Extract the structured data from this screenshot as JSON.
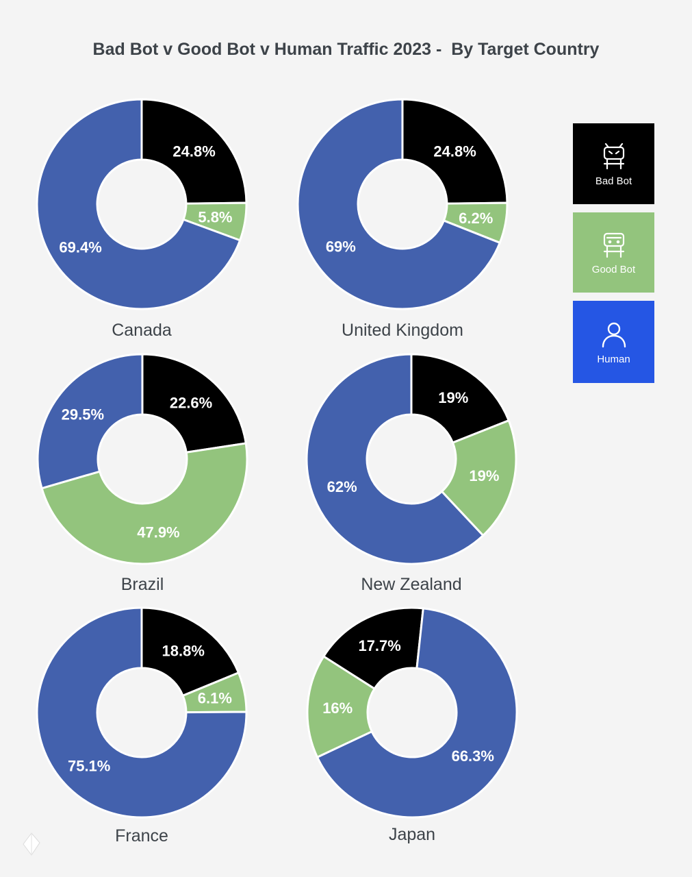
{
  "chart_data": {
    "type": "pie",
    "title": "Bad Bot v Good Bot v Human Traffic 2023 -  By Target Country",
    "series_names": [
      "Bad Bot",
      "Good Bot",
      "Human"
    ],
    "colors": {
      "bad_bot": "#000000",
      "good_bot": "#93c47d",
      "human": "#4361ad",
      "human_legend": "#2556e4"
    },
    "countries": [
      {
        "name": "Canada",
        "slices": [
          {
            "series": "Bad Bot",
            "value": 24.8,
            "label": "24.8%"
          },
          {
            "series": "Good Bot",
            "value": 5.8,
            "label": "5.8%"
          },
          {
            "series": "Human",
            "value": 69.4,
            "label": "69.4%"
          }
        ]
      },
      {
        "name": "United Kingdom",
        "slices": [
          {
            "series": "Bad Bot",
            "value": 24.8,
            "label": "24.8%"
          },
          {
            "series": "Good Bot",
            "value": 6.2,
            "label": "6.2%"
          },
          {
            "series": "Human",
            "value": 69,
            "label": "69%"
          }
        ]
      },
      {
        "name": "Brazil",
        "slices": [
          {
            "series": "Bad Bot",
            "value": 22.6,
            "label": "22.6%"
          },
          {
            "series": "Good Bot",
            "value": 47.9,
            "label": "47.9%"
          },
          {
            "series": "Human",
            "value": 29.5,
            "label": "29.5%"
          }
        ]
      },
      {
        "name": "New Zealand",
        "slices": [
          {
            "series": "Bad Bot",
            "value": 19,
            "label": "19%"
          },
          {
            "series": "Good Bot",
            "value": 19,
            "label": "19%"
          },
          {
            "series": "Human",
            "value": 62,
            "label": "62%"
          }
        ]
      },
      {
        "name": "France",
        "slices": [
          {
            "series": "Bad Bot",
            "value": 18.8,
            "label": "18.8%"
          },
          {
            "series": "Good Bot",
            "value": 6.1,
            "label": "6.1%"
          },
          {
            "series": "Human",
            "value": 75.1,
            "label": "75.1%"
          }
        ]
      },
      {
        "name": "Japan",
        "slices": [
          {
            "series": "Bad Bot",
            "value": 17.7,
            "label": "17.7%"
          },
          {
            "series": "Human",
            "value": 66.3,
            "label": "66.3%"
          },
          {
            "series": "Good Bot",
            "value": 16,
            "label": "16%"
          }
        ]
      }
    ]
  },
  "legend": {
    "bad_bot_label": "Bad Bot",
    "good_bot_label": "Good Bot",
    "human_label": "Human",
    "bad_bot_icon": "bad-bot-icon",
    "good_bot_icon": "good-bot-icon",
    "human_icon": "human-icon"
  },
  "brand": {
    "icon": "logo-icon"
  }
}
